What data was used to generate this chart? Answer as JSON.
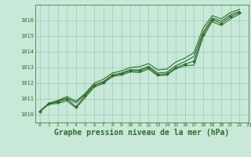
{
  "background_color": "#c8e8d8",
  "grid_color": "#a0c8b8",
  "line_color": "#2d6e2d",
  "xlabel": "Graphe pression niveau de la mer (hPa)",
  "xlim": [
    -0.5,
    22.5
  ],
  "ylim": [
    1009.5,
    1017.0
  ],
  "yticks": [
    1010,
    1011,
    1012,
    1013,
    1014,
    1015,
    1016
  ],
  "xticks": [
    0,
    1,
    2,
    3,
    4,
    5,
    6,
    7,
    8,
    9,
    10,
    11,
    12,
    13,
    14,
    15,
    16,
    17,
    18,
    19,
    20,
    21,
    22,
    23
  ],
  "x": [
    0,
    1,
    2,
    3,
    4,
    5,
    6,
    7,
    8,
    9,
    10,
    11,
    12,
    13,
    14,
    15,
    16,
    17,
    18,
    19,
    20,
    21,
    22
  ],
  "line_main": [
    1010.2,
    1010.7,
    1010.8,
    1011.0,
    1010.5,
    1011.2,
    1011.85,
    1012.05,
    1012.5,
    1012.6,
    1012.8,
    1012.78,
    1013.0,
    1012.55,
    1012.6,
    1013.0,
    1013.22,
    1013.4,
    1015.1,
    1016.05,
    1015.82,
    1016.24,
    1016.5
  ],
  "line_upper": [
    1010.2,
    1010.72,
    1010.9,
    1011.15,
    1010.85,
    1011.35,
    1012.0,
    1012.25,
    1012.65,
    1012.78,
    1013.0,
    1013.05,
    1013.25,
    1012.85,
    1012.9,
    1013.35,
    1013.6,
    1013.95,
    1015.5,
    1016.3,
    1016.1,
    1016.5,
    1016.7
  ],
  "line_lower": [
    1010.18,
    1010.65,
    1010.72,
    1010.88,
    1010.42,
    1011.08,
    1011.75,
    1011.98,
    1012.42,
    1012.52,
    1012.72,
    1012.68,
    1012.9,
    1012.48,
    1012.52,
    1012.92,
    1013.12,
    1013.15,
    1014.95,
    1015.92,
    1015.68,
    1016.1,
    1016.4
  ],
  "line_trend": [
    1010.2,
    1010.72,
    1010.85,
    1011.05,
    1010.75,
    1011.28,
    1011.88,
    1012.1,
    1012.52,
    1012.65,
    1012.86,
    1012.85,
    1013.08,
    1012.65,
    1012.7,
    1013.12,
    1013.38,
    1013.7,
    1015.25,
    1016.15,
    1015.95,
    1016.35,
    1016.58
  ]
}
